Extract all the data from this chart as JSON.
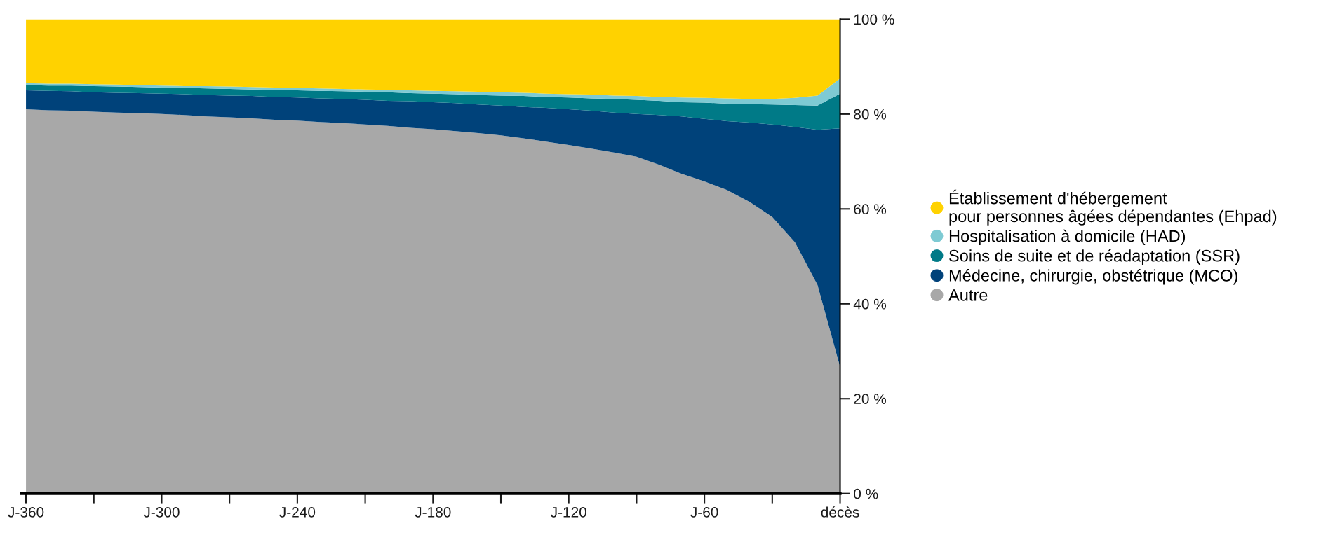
{
  "chart_data": {
    "type": "area",
    "stacked": true,
    "categories": [
      "J-360",
      null,
      null,
      null,
      null,
      null,
      "J-300",
      null,
      null,
      null,
      null,
      null,
      "J-240",
      null,
      null,
      null,
      null,
      null,
      "J-180",
      null,
      null,
      null,
      null,
      null,
      "J-120",
      null,
      null,
      null,
      null,
      null,
      "J-60",
      null,
      null,
      null,
      null,
      null,
      "décès"
    ],
    "series": [
      {
        "name": "Autre",
        "color": "#a8a8a8",
        "values": [
          81,
          80.8,
          80.7,
          80.5,
          80.3,
          80.2,
          80,
          79.8,
          79.5,
          79.3,
          79.1,
          78.8,
          78.6,
          78.3,
          78.1,
          77.8,
          77.5,
          77.1,
          76.8,
          76.4,
          76,
          75.5,
          74.9,
          74.2,
          73.5,
          72.7,
          71.9,
          71,
          69.3,
          67.4,
          65.8,
          64,
          61.5,
          58.3,
          53,
          44,
          26.7
        ]
      },
      {
        "name": "Médecine, chirurgie, obstétrique (MCO)",
        "color": "#00427a",
        "values": [
          4,
          4.1,
          4.1,
          4.1,
          4.2,
          4.2,
          4.3,
          4.4,
          4.5,
          4.6,
          4.7,
          4.8,
          4.9,
          5,
          5.1,
          5.2,
          5.3,
          5.6,
          5.7,
          5.9,
          6,
          6.3,
          6.6,
          7.1,
          7.5,
          8,
          8.4,
          9,
          10.5,
          12.1,
          13.2,
          14.5,
          16.7,
          19.5,
          24.3,
          32.7,
          50.3
        ]
      },
      {
        "name": "Soins de suite et de réadaptation (SSR)",
        "color": "#007a87",
        "values": [
          1.1,
          1.1,
          1.2,
          1.3,
          1.3,
          1.3,
          1.3,
          1.3,
          1.4,
          1.4,
          1.4,
          1.5,
          1.5,
          1.6,
          1.6,
          1.7,
          1.8,
          1.7,
          1.8,
          1.9,
          2,
          2.1,
          2.3,
          2.3,
          2.5,
          2.6,
          2.9,
          3,
          3,
          3,
          3.4,
          3.7,
          3.9,
          4.2,
          4.6,
          5.1,
          7.3
        ]
      },
      {
        "name": "Hospitalisation à domicile (HAD)",
        "color": "#7ecad3",
        "values": [
          0.4,
          0.4,
          0.4,
          0.4,
          0.4,
          0.4,
          0.4,
          0.4,
          0.5,
          0.5,
          0.5,
          0.5,
          0.5,
          0.5,
          0.5,
          0.5,
          0.5,
          0.6,
          0.6,
          0.6,
          0.7,
          0.7,
          0.7,
          0.7,
          0.7,
          0.8,
          0.7,
          0.8,
          0.8,
          1,
          1,
          1.1,
          1.1,
          1.2,
          1.5,
          2.1,
          3.2
        ]
      },
      {
        "name": "Établissement d'hébergement\npour personnes âgées dépendantes (Ehpad)",
        "color": "#ffd200",
        "values": [
          13.5,
          13.6,
          13.6,
          13.7,
          13.8,
          13.9,
          14,
          14.1,
          14.1,
          14.2,
          14.3,
          14.4,
          14.5,
          14.6,
          14.7,
          14.8,
          14.9,
          15,
          15.1,
          15.2,
          15.3,
          15.4,
          15.5,
          15.7,
          15.8,
          15.9,
          16.1,
          16.2,
          16.4,
          16.5,
          16.6,
          16.7,
          16.8,
          16.8,
          16.6,
          16.1,
          12.5
        ]
      }
    ],
    "ylim": [
      0,
      100
    ],
    "yticks": [
      {
        "value": 0,
        "label": "0 %"
      },
      {
        "value": 20,
        "label": "20 %"
      },
      {
        "value": 40,
        "label": "40 %"
      },
      {
        "value": 60,
        "label": "60 %"
      },
      {
        "value": 80,
        "label": "80 %"
      },
      {
        "value": 100,
        "label": "100 %"
      }
    ],
    "grid": false,
    "legend": "right"
  }
}
